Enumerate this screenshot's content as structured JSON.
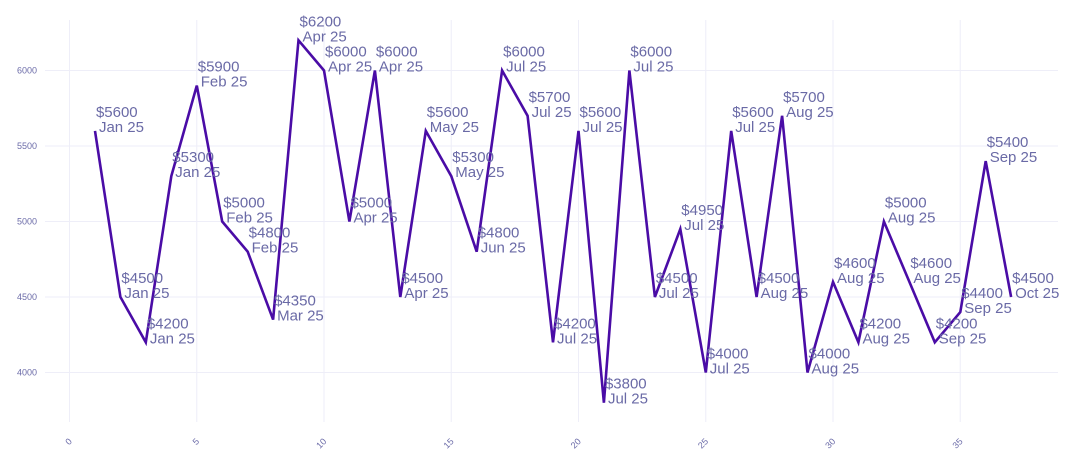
{
  "chart_data": {
    "type": "line",
    "title": "",
    "xlabel": "",
    "ylabel": "",
    "xlim": [
      -1,
      38.5
    ],
    "ylim": [
      3670,
      6330
    ],
    "grid": true,
    "x_ticks": [
      0,
      5,
      10,
      15,
      20,
      25,
      30,
      35
    ],
    "y_ticks": [
      4000,
      4500,
      5000,
      5500,
      6000
    ],
    "series": [
      {
        "name": "value",
        "color": "#4a0ca6",
        "x": [
          1,
          2,
          3,
          4,
          5,
          6,
          7,
          8,
          9,
          10,
          11,
          12,
          13,
          14,
          15,
          16,
          17,
          18,
          19,
          20,
          21,
          22,
          23,
          24,
          25,
          26,
          27,
          28,
          29,
          30,
          31,
          32,
          33,
          34,
          35,
          36,
          37
        ],
        "values": [
          5600,
          4500,
          4200,
          5300,
          5900,
          5000,
          4800,
          4350,
          6200,
          6000,
          5000,
          6000,
          4500,
          5600,
          5300,
          4800,
          6000,
          5700,
          4200,
          5600,
          3800,
          6000,
          4500,
          4950,
          4000,
          5600,
          4500,
          5700,
          4000,
          4600,
          4200,
          5000,
          4600,
          4200,
          4400,
          5400,
          4500
        ],
        "labels": [
          [
            "$5600",
            "Jan 25"
          ],
          [
            "$4500",
            "Jan 25"
          ],
          [
            "$4200",
            "Jan 25"
          ],
          [
            "$5300",
            "Jan 25"
          ],
          [
            "$5900",
            "Feb 25"
          ],
          [
            "$5000",
            "Feb 25"
          ],
          [
            "$4800",
            "Feb 25"
          ],
          [
            "$4350",
            "Mar 25"
          ],
          [
            "$6200",
            "Apr 25"
          ],
          [
            "$6000",
            "Apr 25"
          ],
          [
            "$5000",
            "Apr 25"
          ],
          [
            "$6000",
            "Apr 25"
          ],
          [
            "$4500",
            "Apr 25"
          ],
          [
            "$5600",
            "May 25"
          ],
          [
            "$5300",
            "May 25"
          ],
          [
            "$4800",
            "Jun 25"
          ],
          [
            "$6000",
            "Jul 25"
          ],
          [
            "$5700",
            "Jul 25"
          ],
          [
            "$4200",
            "Jul 25"
          ],
          [
            "$5600",
            "Jul 25"
          ],
          [
            "$3800",
            "Jul 25"
          ],
          [
            "$6000",
            "Jul 25"
          ],
          [
            "$4500",
            "Jul 25"
          ],
          [
            "$4950",
            "Jul 25"
          ],
          [
            "$4000",
            "Jul 25"
          ],
          [
            "$5600",
            "Jul 25"
          ],
          [
            "$4500",
            "Aug 25"
          ],
          [
            "$5700",
            "Aug 25"
          ],
          [
            "$4000",
            "Aug 25"
          ],
          [
            "$4600",
            "Aug 25"
          ],
          [
            "$4200",
            "Aug 25"
          ],
          [
            "$5000",
            "Aug 25"
          ],
          [
            "$4600",
            "Aug 25"
          ],
          [
            "$4200",
            "Sep 25"
          ],
          [
            "$4400",
            "Sep 25"
          ],
          [
            "$5400",
            "Sep 25"
          ],
          [
            "$4500",
            "Oct 25"
          ]
        ]
      }
    ]
  }
}
